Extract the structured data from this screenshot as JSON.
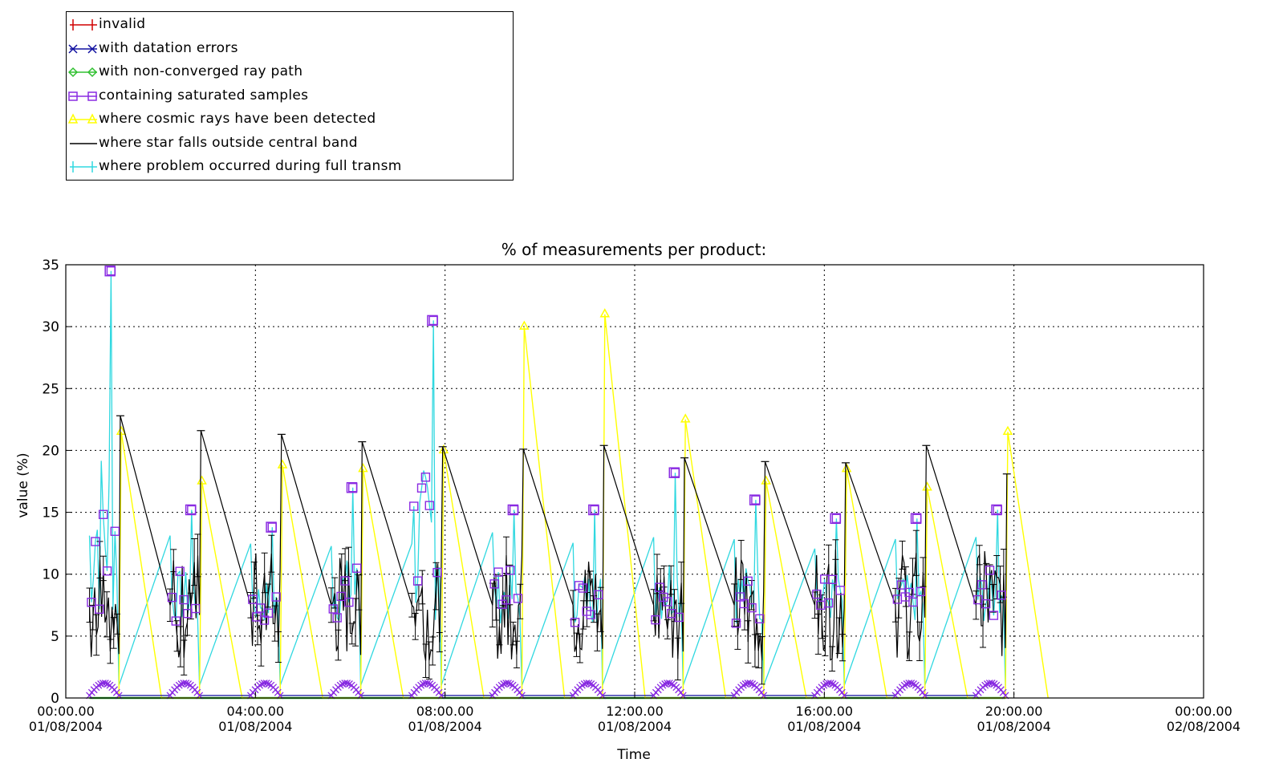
{
  "legend": {
    "items": [
      {
        "label": "invalid",
        "color": "#d00000",
        "marker": "plus"
      },
      {
        "label": "with datation errors",
        "color": "#1010a0",
        "marker": "x"
      },
      {
        "label": "with non-converged ray path",
        "color": "#30c030",
        "marker": "diamond"
      },
      {
        "label": "containing saturated samples",
        "color": "#8a2be2",
        "marker": "square"
      },
      {
        "label": "where cosmic rays have been detected",
        "color": "#ffff00",
        "marker": "triangle"
      },
      {
        "label": "where star falls outside central band",
        "color": "#000000",
        "marker": "none"
      },
      {
        "label": "where problem occurred during full transm",
        "color": "#30d8e0",
        "marker": "bar"
      }
    ]
  },
  "chart_data": {
    "type": "line",
    "title": "% of measurements per product:",
    "xlabel": "Time",
    "ylabel": "value (%)",
    "ylim": [
      0,
      35
    ],
    "yticks": [
      0,
      5,
      10,
      15,
      20,
      25,
      30,
      35
    ],
    "xlim_hours": [
      0,
      24
    ],
    "xtick_hours": [
      0,
      4,
      8,
      12,
      16,
      20,
      24
    ],
    "xtick_labels": [
      [
        "00:00.00",
        "01/08/2004"
      ],
      [
        "04:00.00",
        "01/08/2004"
      ],
      [
        "08:00.00",
        "01/08/2004"
      ],
      [
        "12:00.00",
        "01/08/2004"
      ],
      [
        "16:00.00",
        "01/08/2004"
      ],
      [
        "20:00.00",
        "01/08/2004"
      ],
      [
        "00:00.00",
        "02/08/2004"
      ]
    ],
    "grid": true,
    "orbit_start_hours": [
      0.5,
      2.2,
      3.9,
      5.6,
      7.3,
      9.0,
      10.7,
      12.4,
      14.1,
      15.8,
      17.5,
      19.2
    ],
    "series": [
      {
        "name": "where star falls outside central band",
        "color": "#000000",
        "peaks": [
          22.8,
          21.6,
          21.3,
          20.7,
          20.3,
          20.1,
          20.4,
          19.4,
          19.1,
          19.0,
          20.4,
          18.1
        ]
      },
      {
        "name": "where cosmic rays have been detected",
        "color": "#ffff00",
        "peaks": [
          21.5,
          17.5,
          18.8,
          18.5,
          20.0,
          30.0,
          31.0,
          22.5,
          17.5,
          18.5,
          17.0,
          21.5
        ]
      },
      {
        "name": "containing saturated samples",
        "color": "#8a2be2",
        "peaks": [
          34.5,
          15.2,
          13.8,
          17.0,
          30.5,
          15.2,
          15.2,
          18.2,
          16.0,
          14.5,
          14.5,
          15.2
        ]
      },
      {
        "name": "where problem occurred during full transm",
        "color": "#30d8e0",
        "peaks": [
          34.5,
          15.2,
          13.8,
          17.0,
          30.5,
          15.2,
          15.2,
          18.2,
          16.0,
          14.5,
          14.5,
          15.2
        ]
      },
      {
        "name": "with datation errors",
        "color": "#1010a0",
        "level": 1.0
      },
      {
        "name": "with non-converged ray path",
        "color": "#30c030",
        "level": 0.0
      },
      {
        "name": "invalid",
        "color": "#d00000",
        "level": 0.0
      }
    ]
  }
}
